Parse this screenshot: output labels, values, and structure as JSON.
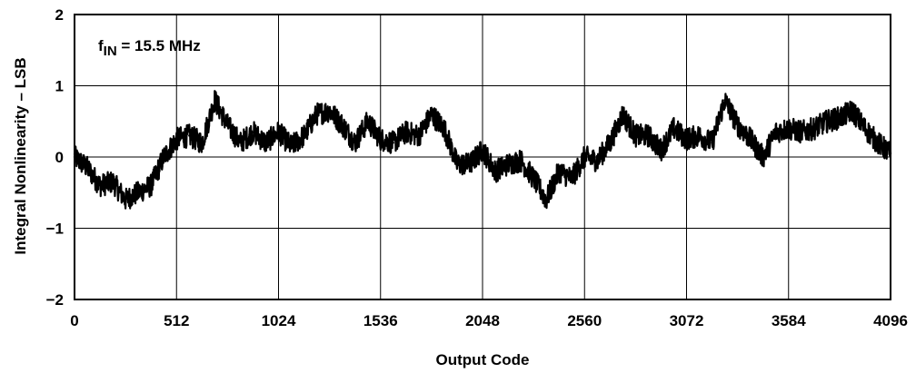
{
  "chart_data": {
    "type": "line",
    "xlabel": "Output Code",
    "ylabel": "Integral Nonlinearity – LSB",
    "xlim": [
      0,
      4096
    ],
    "ylim": [
      -2,
      2
    ],
    "x_ticks": [
      "0",
      "512",
      "1024",
      "1536",
      "2048",
      "2560",
      "3072",
      "3584",
      "4096"
    ],
    "y_ticks": [
      "2",
      "1",
      "0",
      "−1",
      "−2"
    ],
    "grid": true,
    "annotation": {
      "f": "f",
      "sub": "IN",
      "rest": " = 15.5 MHz"
    },
    "series": [
      {
        "color": "#000000",
        "x": [
          0,
          64,
          128,
          192,
          256,
          320,
          384,
          448,
          512,
          576,
          640,
          704,
          768,
          832,
          896,
          960,
          1024,
          1088,
          1152,
          1216,
          1280,
          1344,
          1408,
          1472,
          1536,
          1600,
          1664,
          1728,
          1792,
          1856,
          1920,
          1984,
          2048,
          2112,
          2176,
          2240,
          2304,
          2368,
          2432,
          2496,
          2560,
          2624,
          2688,
          2752,
          2816,
          2880,
          2944,
          3008,
          3072,
          3136,
          3200,
          3264,
          3328,
          3392,
          3456,
          3520,
          3584,
          3648,
          3712,
          3776,
          3840,
          3904,
          3968,
          4032,
          4096
        ],
        "y": [
          0.0,
          -0.15,
          -0.4,
          -0.35,
          -0.6,
          -0.5,
          -0.4,
          0.0,
          0.25,
          0.3,
          0.2,
          0.8,
          0.45,
          0.2,
          0.35,
          0.2,
          0.35,
          0.15,
          0.3,
          0.6,
          0.65,
          0.45,
          0.2,
          0.5,
          0.25,
          0.2,
          0.35,
          0.3,
          0.6,
          0.4,
          -0.1,
          -0.1,
          0.1,
          -0.2,
          -0.1,
          -0.05,
          -0.3,
          -0.6,
          -0.2,
          -0.3,
          0.0,
          -0.05,
          0.2,
          0.6,
          0.3,
          0.3,
          0.1,
          0.4,
          0.25,
          0.3,
          0.2,
          0.8,
          0.45,
          0.25,
          0.0,
          0.35,
          0.4,
          0.35,
          0.4,
          0.5,
          0.55,
          0.65,
          0.4,
          0.2,
          0.05
        ]
      }
    ]
  }
}
